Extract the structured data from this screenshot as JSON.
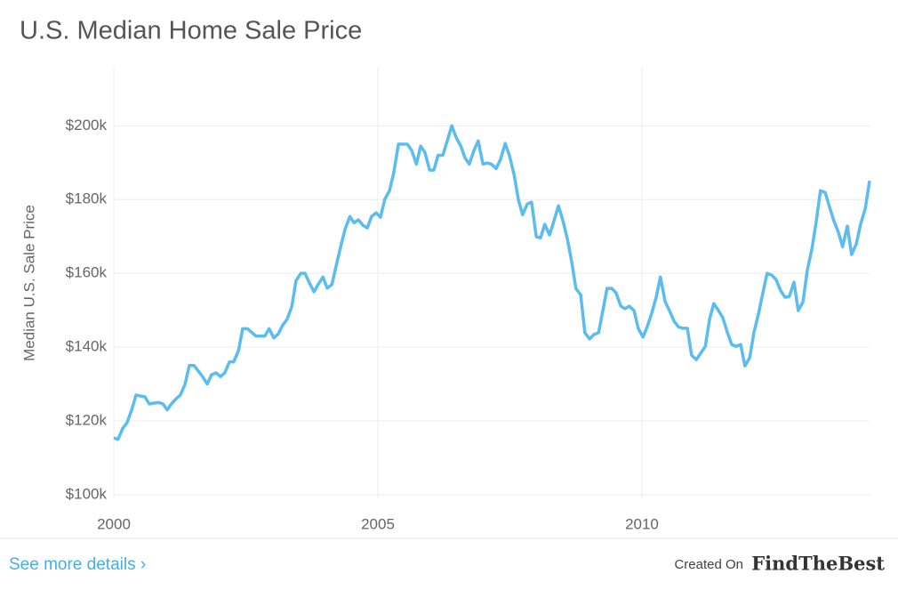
{
  "chart_data": {
    "type": "line",
    "title": "U.S. Median Home Sale Price",
    "y_label": "Median U.S. Sale Price",
    "xlim": [
      2000,
      2014.31
    ],
    "xticks": [
      2000,
      2005,
      2010
    ],
    "ylim": [
      99,
      216
    ],
    "yticks": [
      {
        "value": 100,
        "label": "$100k"
      },
      {
        "value": 120,
        "label": "$120k"
      },
      {
        "value": 140,
        "label": "$140k"
      },
      {
        "value": 160,
        "label": "$160k"
      },
      {
        "value": 180,
        "label": "$180k"
      },
      {
        "value": 200,
        "label": "$200k"
      }
    ],
    "grid": true,
    "x": [
      2000.0,
      2000.08,
      2000.17,
      2000.25,
      2000.34,
      2000.42,
      2000.59,
      2000.67,
      2000.84,
      2000.93,
      2001.01,
      2001.09,
      2001.18,
      2001.26,
      2001.35,
      2001.43,
      2001.52,
      2001.6,
      2001.68,
      2001.77,
      2001.85,
      2001.94,
      2002.02,
      2002.1,
      2002.19,
      2002.27,
      2002.36,
      2002.44,
      2002.53,
      2002.61,
      2002.69,
      2002.78,
      2002.86,
      2002.94,
      2003.03,
      2003.11,
      2003.2,
      2003.28,
      2003.37,
      2003.45,
      2003.54,
      2003.62,
      2003.7,
      2003.79,
      2003.87,
      2003.96,
      2004.04,
      2004.13,
      2004.21,
      2004.3,
      2004.38,
      2004.47,
      2004.55,
      2004.63,
      2004.72,
      2004.8,
      2004.88,
      2004.97,
      2005.05,
      2005.13,
      2005.22,
      2005.3,
      2005.39,
      2005.56,
      2005.64,
      2005.73,
      2005.81,
      2005.89,
      2005.98,
      2006.06,
      2006.14,
      2006.23,
      2006.31,
      2006.4,
      2006.48,
      2006.57,
      2006.65,
      2006.73,
      2006.82,
      2006.9,
      2006.99,
      2007.07,
      2007.15,
      2007.24,
      2007.32,
      2007.41,
      2007.49,
      2007.58,
      2007.66,
      2007.74,
      2007.83,
      2007.91,
      2008.0,
      2008.08,
      2008.16,
      2008.25,
      2008.33,
      2008.42,
      2008.5,
      2008.59,
      2008.67,
      2008.75,
      2008.84,
      2008.92,
      2009.01,
      2009.09,
      2009.18,
      2009.26,
      2009.34,
      2009.43,
      2009.51,
      2009.6,
      2009.68,
      2009.76,
      2009.85,
      2009.93,
      2010.02,
      2010.1,
      2010.19,
      2010.27,
      2010.35,
      2010.44,
      2010.52,
      2010.61,
      2010.69,
      2010.77,
      2010.86,
      2010.94,
      2011.03,
      2011.11,
      2011.2,
      2011.28,
      2011.36,
      2011.45,
      2011.53,
      2011.62,
      2011.7,
      2011.78,
      2011.87,
      2011.95,
      2012.04,
      2012.12,
      2012.21,
      2012.29,
      2012.37,
      2012.46,
      2012.54,
      2012.63,
      2012.71,
      2012.79,
      2012.88,
      2012.96,
      2013.05,
      2013.13,
      2013.22,
      2013.3,
      2013.38,
      2013.47,
      2013.55,
      2013.64,
      2013.72,
      2013.8,
      2013.89,
      2013.97,
      2014.06,
      2014.14,
      2014.23,
      2014.31
    ],
    "series": [
      {
        "color": "#5bbcf0",
        "values": [
          115.4,
          115,
          118,
          119.5,
          123,
          127,
          126.5,
          124.6,
          125,
          124.6,
          123,
          124.6,
          126,
          127,
          130,
          135,
          135,
          133.5,
          132,
          130,
          132.5,
          133,
          132,
          133,
          136,
          136,
          139,
          145,
          145,
          144,
          143,
          143,
          143,
          145,
          142.5,
          143.5,
          146,
          147.5,
          151,
          158,
          160,
          160,
          157.5,
          155,
          157,
          159,
          156,
          157,
          162,
          167.5,
          172,
          175.4,
          173.7,
          174.5,
          173,
          172.3,
          175.4,
          176.4,
          175.2,
          180,
          182.4,
          187.2,
          195,
          195,
          193.3,
          189.6,
          194.5,
          192.8,
          188,
          188,
          192,
          192,
          195.7,
          200,
          196.9,
          194.5,
          191.3,
          189.6,
          193.3,
          195.9,
          189.6,
          189.9,
          189.6,
          188.4,
          190.8,
          195.2,
          192,
          186.7,
          180,
          175.9,
          178.8,
          179.3,
          169.9,
          169.6,
          173.3,
          170.4,
          174,
          178.3,
          174.5,
          169.2,
          163.1,
          155.9,
          154.2,
          143.9,
          142.2,
          143.4,
          143.9,
          149.9,
          155.9,
          155.9,
          154.7,
          151.1,
          150.4,
          151.1,
          149.9,
          145.1,
          142.7,
          145.5,
          149.4,
          153.5,
          159,
          152.3,
          149.9,
          147,
          145.5,
          145.1,
          145.1,
          137.8,
          136.6,
          138.3,
          140.2,
          147.5,
          151.8,
          149.9,
          148,
          143.9,
          140.7,
          140.2,
          140.7,
          134.9,
          137.1,
          143.9,
          149.2,
          154.7,
          160,
          159.5,
          158.3,
          155.2,
          153.5,
          153.7,
          157.6,
          149.9,
          152.3,
          160.7,
          166.7,
          174,
          182.4,
          181.9,
          178.1,
          174,
          171.1,
          167.2,
          172.8,
          165.1,
          168,
          173.3,
          177.6,
          185.1
        ]
      }
    ]
  },
  "footer": {
    "link": "See more details ›",
    "credit": "Created On",
    "brand": "FindTheBest"
  }
}
